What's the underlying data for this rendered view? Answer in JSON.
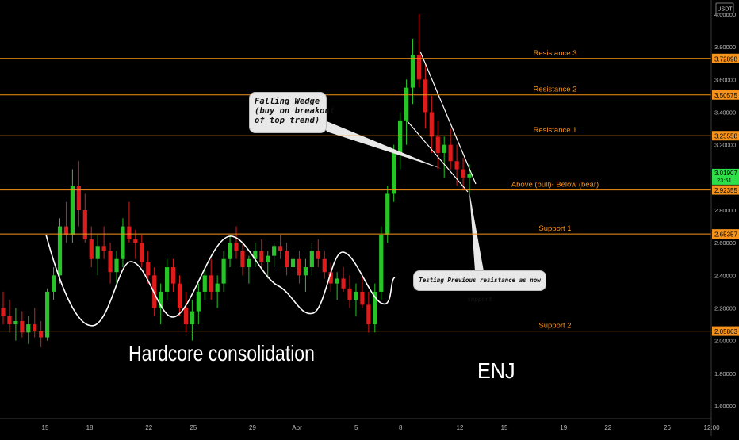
{
  "chart_data": {
    "type": "candlestick",
    "symbol": "ENJ",
    "currency_label": "USDT",
    "y_ticks": [
      "4.00000",
      "3.80000",
      "3.60000",
      "3.40000",
      "3.20000",
      "2.80000",
      "2.60000",
      "2.40000",
      "2.20000",
      "2.00000",
      "1.80000",
      "1.60000"
    ],
    "ylim": [
      1.52,
      4.2
    ],
    "x_ticks": [
      {
        "label": "15",
        "day": 15
      },
      {
        "label": "18",
        "day": 18
      },
      {
        "label": "22",
        "day": 22
      },
      {
        "label": "25",
        "day": 25
      },
      {
        "label": "29",
        "day": 29
      },
      {
        "label": "Apr",
        "day": 32
      },
      {
        "label": "5",
        "day": 36
      },
      {
        "label": "8",
        "day": 39
      },
      {
        "label": "12",
        "day": 43
      },
      {
        "label": "15",
        "day": 46
      },
      {
        "label": "19",
        "day": 50
      },
      {
        "label": "22",
        "day": 53
      },
      {
        "label": "26",
        "day": 57
      },
      {
        "label": "12:00",
        "day": 60
      }
    ],
    "last_price": {
      "value": "3.01907",
      "countdown": "23:51",
      "color": "#2de04a"
    },
    "levels": [
      {
        "label": "Resistance 3",
        "value": 3.72898,
        "value_label": "3.72898"
      },
      {
        "label": "Resistance 2",
        "value": 3.50575,
        "value_label": "3.50575"
      },
      {
        "label": "Resistance 1",
        "value": 3.25558,
        "value_label": "3.25558"
      },
      {
        "label": "Above (bull)- Below (bear)",
        "value": 2.92355,
        "value_label": "2.92355"
      },
      {
        "label": "Support 1",
        "value": 2.65357,
        "value_label": "2.65357"
      },
      {
        "label": "Support 2",
        "value": 2.05863,
        "value_label": "2.05863"
      }
    ],
    "level_color": "#f7931a",
    "up_color": "#26c426",
    "down_color": "#e01b1b",
    "grid": false,
    "annotations": {
      "wedge_note": "Falling Wedge\n(buy on breakout\nof top trend)",
      "test_note": "Testing Previous resistance as now support",
      "consolidation": "Hardcore consolidation",
      "ticker": "ENJ"
    },
    "candles": [
      [
        2.2,
        2.3,
        2.1,
        2.15
      ],
      [
        2.15,
        2.25,
        2.05,
        2.1
      ],
      [
        2.1,
        2.2,
        2.0,
        2.12
      ],
      [
        2.12,
        2.18,
        2.02,
        2.05
      ],
      [
        2.05,
        2.15,
        1.98,
        2.1
      ],
      [
        2.1,
        2.2,
        2.02,
        2.06
      ],
      [
        2.06,
        2.12,
        1.96,
        2.02
      ],
      [
        2.02,
        2.32,
        2.0,
        2.3
      ],
      [
        2.3,
        2.45,
        2.25,
        2.4
      ],
      [
        2.4,
        2.75,
        2.35,
        2.7
      ],
      [
        2.7,
        2.85,
        2.6,
        2.65
      ],
      [
        2.65,
        3.05,
        2.6,
        2.95
      ],
      [
        2.95,
        3.1,
        2.7,
        2.8
      ],
      [
        2.8,
        2.9,
        2.6,
        2.62
      ],
      [
        2.62,
        2.7,
        2.45,
        2.5
      ],
      [
        2.5,
        2.65,
        2.4,
        2.58
      ],
      [
        2.58,
        2.7,
        2.5,
        2.55
      ],
      [
        2.55,
        2.6,
        2.35,
        2.42
      ],
      [
        2.42,
        2.55,
        2.35,
        2.5
      ],
      [
        2.5,
        2.75,
        2.45,
        2.7
      ],
      [
        2.7,
        2.85,
        2.6,
        2.62
      ],
      [
        2.62,
        2.68,
        2.5,
        2.6
      ],
      [
        2.6,
        2.65,
        2.45,
        2.48
      ],
      [
        2.48,
        2.55,
        2.35,
        2.4
      ],
      [
        2.4,
        2.45,
        2.15,
        2.2
      ],
      [
        2.2,
        2.35,
        2.1,
        2.3
      ],
      [
        2.3,
        2.5,
        2.25,
        2.45
      ],
      [
        2.45,
        2.5,
        2.3,
        2.35
      ],
      [
        2.35,
        2.4,
        2.15,
        2.2
      ],
      [
        2.2,
        2.3,
        2.05,
        2.1
      ],
      [
        2.1,
        2.25,
        2.0,
        2.18
      ],
      [
        2.18,
        2.35,
        2.1,
        2.3
      ],
      [
        2.3,
        2.45,
        2.25,
        2.4
      ],
      [
        2.4,
        2.5,
        2.25,
        2.3
      ],
      [
        2.3,
        2.4,
        2.2,
        2.35
      ],
      [
        2.35,
        2.55,
        2.3,
        2.5
      ],
      [
        2.5,
        2.65,
        2.45,
        2.6
      ],
      [
        2.6,
        2.7,
        2.5,
        2.55
      ],
      [
        2.55,
        2.6,
        2.4,
        2.45
      ],
      [
        2.45,
        2.52,
        2.35,
        2.5
      ],
      [
        2.5,
        2.6,
        2.45,
        2.55
      ],
      [
        2.55,
        2.62,
        2.45,
        2.48
      ],
      [
        2.48,
        2.55,
        2.38,
        2.52
      ],
      [
        2.52,
        2.6,
        2.45,
        2.58
      ],
      [
        2.58,
        2.65,
        2.5,
        2.55
      ],
      [
        2.55,
        2.6,
        2.4,
        2.45
      ],
      [
        2.45,
        2.55,
        2.4,
        2.5
      ],
      [
        2.5,
        2.55,
        2.35,
        2.4
      ],
      [
        2.4,
        2.5,
        2.3,
        2.45
      ],
      [
        2.45,
        2.6,
        2.4,
        2.55
      ],
      [
        2.55,
        2.62,
        2.45,
        2.5
      ],
      [
        2.5,
        2.55,
        2.38,
        2.42
      ],
      [
        2.42,
        2.48,
        2.3,
        2.35
      ],
      [
        2.35,
        2.42,
        2.25,
        2.38
      ],
      [
        2.38,
        2.45,
        2.3,
        2.32
      ],
      [
        2.32,
        2.4,
        2.2,
        2.25
      ],
      [
        2.25,
        2.35,
        2.15,
        2.3
      ],
      [
        2.3,
        2.4,
        2.2,
        2.22
      ],
      [
        2.22,
        2.3,
        2.05,
        2.1
      ],
      [
        2.1,
        2.35,
        2.05,
        2.3
      ],
      [
        2.3,
        2.7,
        2.25,
        2.65
      ],
      [
        2.65,
        2.95,
        2.6,
        2.9
      ],
      [
        2.9,
        3.2,
        2.85,
        3.15
      ],
      [
        3.15,
        3.4,
        3.05,
        3.35
      ],
      [
        3.35,
        3.6,
        3.2,
        3.55
      ],
      [
        3.55,
        3.85,
        3.45,
        3.75
      ],
      [
        3.75,
        4.0,
        3.55,
        3.6
      ],
      [
        3.6,
        3.7,
        3.3,
        3.4
      ],
      [
        3.4,
        3.5,
        3.15,
        3.25
      ],
      [
        3.25,
        3.35,
        3.05,
        3.15
      ],
      [
        3.15,
        3.25,
        3.0,
        3.2
      ],
      [
        3.2,
        3.3,
        3.05,
        3.1
      ],
      [
        3.1,
        3.2,
        2.95,
        3.05
      ],
      [
        3.05,
        3.12,
        2.92,
        3.0
      ],
      [
        3.0,
        3.08,
        2.9,
        3.02
      ]
    ]
  }
}
